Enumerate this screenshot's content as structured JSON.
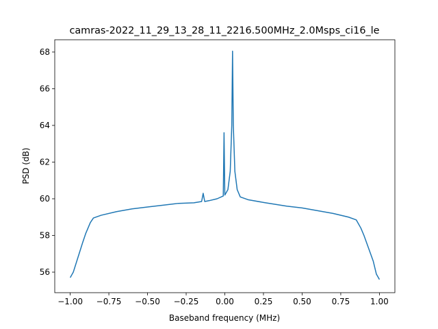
{
  "chart_data": {
    "type": "line",
    "title": "camras-2022_11_29_13_28_11_2216.500MHz_2.0Msps_ci16_le",
    "x_label": "Baseband frequency (MHz)",
    "y_label": "PSD (dB)",
    "x": [
      -1.0,
      -0.98,
      -0.95,
      -0.92,
      -0.9,
      -0.87,
      -0.85,
      -0.8,
      -0.7,
      -0.6,
      -0.5,
      -0.4,
      -0.3,
      -0.2,
      -0.15,
      -0.14,
      -0.13,
      -0.1,
      -0.05,
      -0.01,
      -0.005,
      0.0,
      0.02,
      0.035,
      0.045,
      0.05,
      0.055,
      0.065,
      0.08,
      0.1,
      0.15,
      0.25,
      0.4,
      0.5,
      0.6,
      0.7,
      0.8,
      0.85,
      0.88,
      0.9,
      0.93,
      0.96,
      0.98,
      1.0
    ],
    "series": [
      {
        "name": "PSD",
        "color": "#1f77b4",
        "values": [
          55.7,
          56.0,
          56.8,
          57.6,
          58.1,
          58.7,
          58.95,
          59.1,
          59.3,
          59.45,
          59.55,
          59.65,
          59.75,
          59.78,
          59.85,
          60.3,
          59.85,
          59.9,
          60.0,
          60.15,
          63.6,
          60.2,
          60.5,
          61.5,
          64.0,
          68.05,
          64.0,
          61.5,
          60.5,
          60.1,
          59.95,
          59.8,
          59.6,
          59.5,
          59.35,
          59.2,
          59.0,
          58.85,
          58.4,
          58.0,
          57.3,
          56.6,
          55.9,
          55.6
        ]
      }
    ],
    "xlim": [
      -1.1,
      1.1
    ],
    "ylim": [
      54.88,
      68.67
    ],
    "xticks": [
      {
        "value": -1.0,
        "label": "−1.00"
      },
      {
        "value": -0.75,
        "label": "−0.75"
      },
      {
        "value": -0.5,
        "label": "−0.50"
      },
      {
        "value": -0.25,
        "label": "−0.25"
      },
      {
        "value": 0,
        "label": "0.00"
      },
      {
        "value": 0.25,
        "label": "0.25"
      },
      {
        "value": 0.5,
        "label": "0.50"
      },
      {
        "value": 0.75,
        "label": "0.75"
      },
      {
        "value": 1.0,
        "label": "1.00"
      }
    ],
    "yticks": [
      56,
      58,
      60,
      62,
      64,
      66,
      68
    ],
    "grid": false
  }
}
